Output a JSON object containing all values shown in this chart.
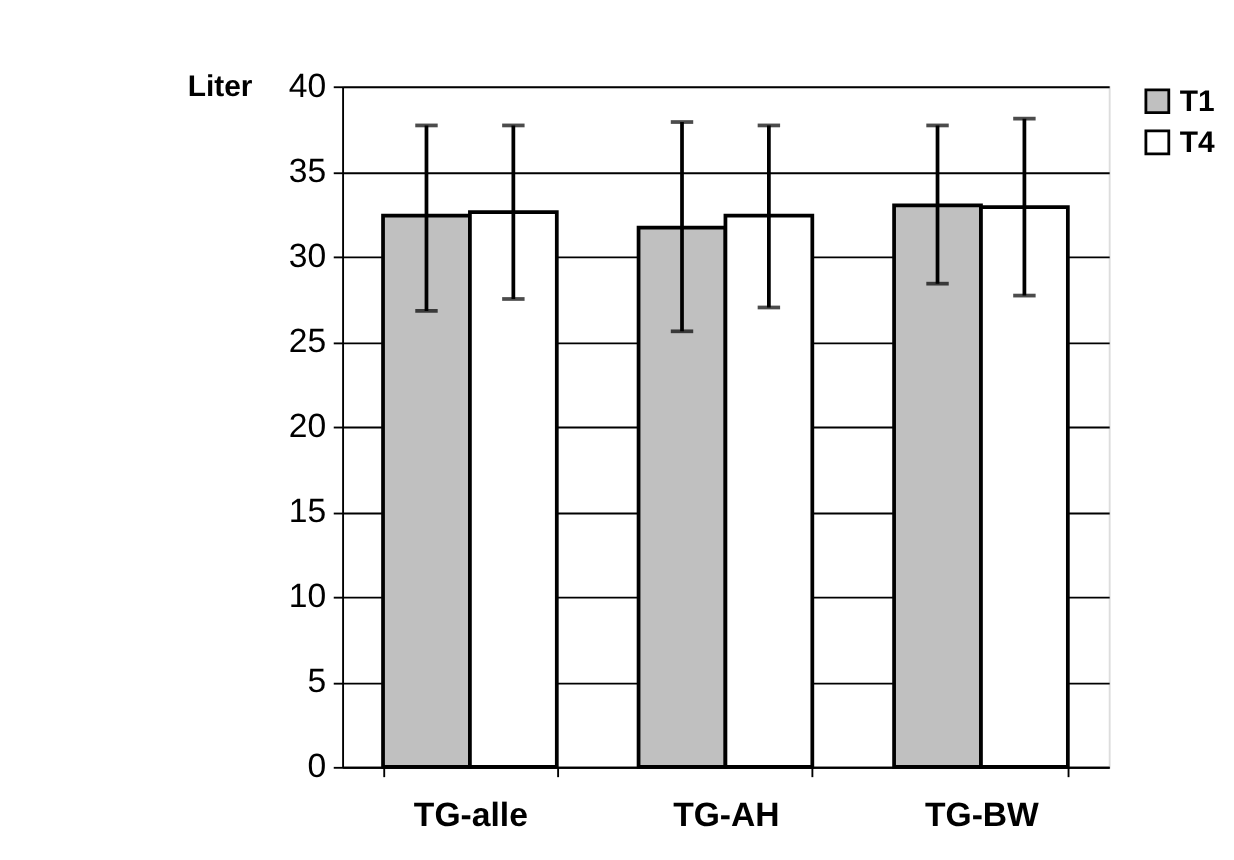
{
  "chart_data": {
    "type": "bar",
    "ylabel": "Liter",
    "categories": [
      "TG-alle",
      "TG-AH",
      "TG-BW"
    ],
    "series": [
      {
        "name": "T1",
        "color": "#c0c0c0",
        "values": [
          32.4,
          31.7,
          33.0
        ],
        "errors": [
          [
            26.8,
            37.7
          ],
          [
            25.6,
            37.9
          ],
          [
            28.4,
            37.7
          ]
        ]
      },
      {
        "name": "T4",
        "color": "#ffffff",
        "values": [
          32.6,
          32.4,
          32.9
        ],
        "errors": [
          [
            27.5,
            37.7
          ],
          [
            27.0,
            37.7
          ],
          [
            27.7,
            38.1
          ]
        ]
      }
    ],
    "ylim": [
      0,
      40
    ],
    "yticks": [
      0,
      5,
      10,
      15,
      20,
      25,
      30,
      35,
      40
    ],
    "grid": "y",
    "legend": "right"
  }
}
